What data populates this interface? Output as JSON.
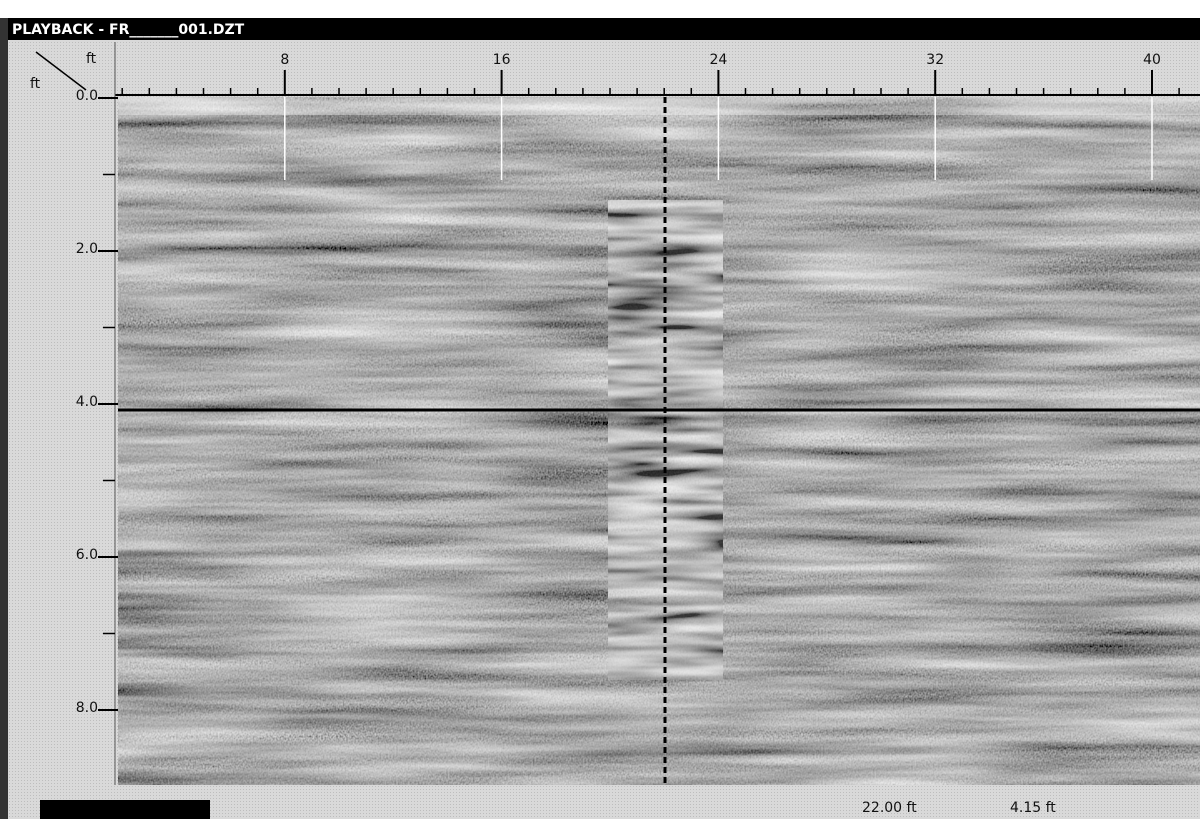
{
  "window": {
    "title": "PLAYBACK - FR_______001.DZT"
  },
  "ruler": {
    "x_unit": "ft",
    "y_unit": "ft",
    "x_ticks": [
      8,
      16,
      24,
      32,
      40
    ],
    "y_ticks": [
      {
        "value": 0,
        "label": "0.0"
      },
      {
        "value": 2,
        "label": "2.0"
      },
      {
        "value": 4,
        "label": "4.0"
      },
      {
        "value": 6,
        "label": "6.0"
      },
      {
        "value": 8,
        "label": "8.0"
      }
    ]
  },
  "status": {
    "distance": "22.00 ft",
    "depth": "4.15 ft"
  }
}
